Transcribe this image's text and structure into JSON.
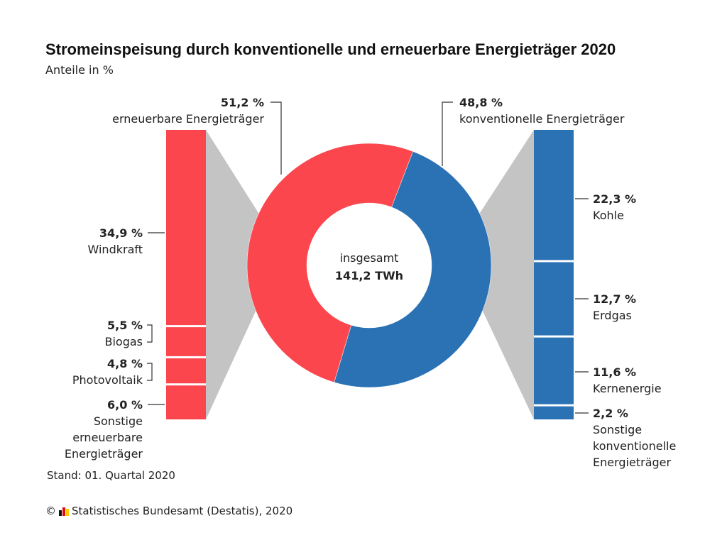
{
  "header": {
    "title": "Stromeinspeisung durch konventionelle und erneuerbare Energieträger 2020",
    "subtitle": "Anteile in %"
  },
  "colors": {
    "renewable": "#fc464d",
    "conventional": "#2b72b4",
    "connector": "#c4c4c4",
    "leader": "#333333"
  },
  "chart_data": {
    "type": "pie",
    "center_label": "insgesamt",
    "center_total": "141,2 TWh",
    "groups": [
      {
        "key": "renewable",
        "name": "erneuerbare Energieträger",
        "value": 51.2,
        "value_label": "51,2 %",
        "components": [
          {
            "name": "Windkraft",
            "value": 34.9,
            "value_label": "34,9 %"
          },
          {
            "name": "Biogas",
            "value": 5.5,
            "value_label": "5,5 %"
          },
          {
            "name": "Photovoltaik",
            "value": 4.8,
            "value_label": "4,8 %"
          },
          {
            "name": "Sonstige erneuerbare Energieträger",
            "value": 6.0,
            "value_label": "6,0 %"
          }
        ]
      },
      {
        "key": "conventional",
        "name": "konventionelle Energieträger",
        "value": 48.8,
        "value_label": "48,8 %",
        "components": [
          {
            "name": "Kohle",
            "value": 22.3,
            "value_label": "22,3 %"
          },
          {
            "name": "Erdgas",
            "value": 12.7,
            "value_label": "12,7 %"
          },
          {
            "name": "Kernenergie",
            "value": 11.6,
            "value_label": "11,6 %"
          },
          {
            "name": "Sonstige konventionelle Energieträger",
            "value": 2.2,
            "value_label": "2,2 %"
          }
        ]
      }
    ]
  },
  "notes": {
    "stand": "Stand: 01. Quartal 2020",
    "copyright": "©",
    "source": "Statistisches Bundesamt (Destatis), 2020",
    "logo_icon": "destatis-logo-icon"
  }
}
